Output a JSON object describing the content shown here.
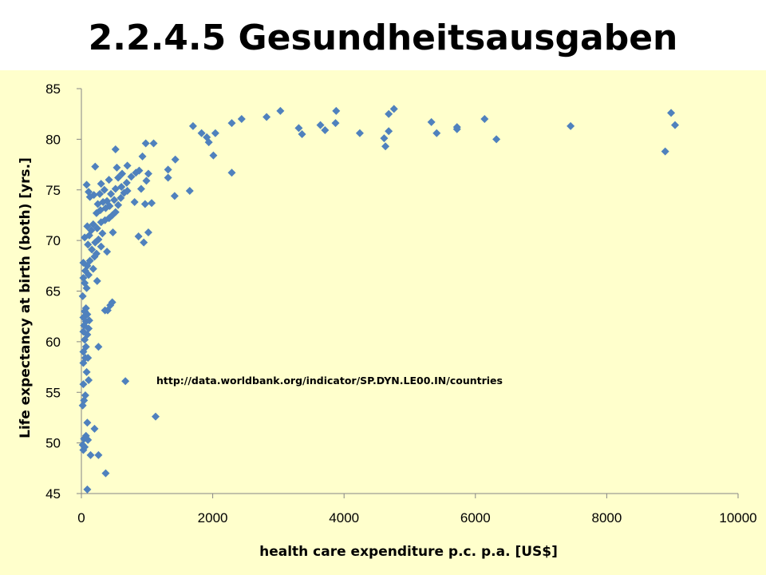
{
  "slide": {
    "title": "2.2.4.5 Gesundheitsausgaben"
  },
  "colors": {
    "panel_background": "#FFFFCC",
    "marker": "#4F81BD",
    "axis": "#868686"
  },
  "chart_data": {
    "type": "scatter",
    "title": "",
    "xlabel": "health care expenditure p.c. p.a. [US$]",
    "ylabel": "Life expectancy at birth (both) [yrs.]",
    "xlim": [
      0,
      10000
    ],
    "ylim": [
      45,
      85
    ],
    "xticks": [
      0,
      2000,
      4000,
      6000,
      8000,
      10000
    ],
    "yticks": [
      45,
      50,
      55,
      60,
      65,
      70,
      75,
      80,
      85
    ],
    "grid": false,
    "legend": "none",
    "marker": "diamond",
    "annotation": "http://data.worldbank.org/indicator/SP.DYN.LE00.IN/countries",
    "points": [
      [
        90,
        45.4
      ],
      [
        370,
        47.0
      ],
      [
        140,
        48.8
      ],
      [
        260,
        48.8
      ],
      [
        30,
        49.3
      ],
      [
        50,
        49.6
      ],
      [
        20,
        49.8
      ],
      [
        40,
        50.4
      ],
      [
        70,
        50.7
      ],
      [
        100,
        50.3
      ],
      [
        200,
        51.4
      ],
      [
        90,
        52.0
      ],
      [
        20,
        53.7
      ],
      [
        40,
        54.2
      ],
      [
        60,
        54.7
      ],
      [
        30,
        55.8
      ],
      [
        110,
        56.2
      ],
      [
        80,
        57.0
      ],
      [
        30,
        57.9
      ],
      [
        60,
        58.4
      ],
      [
        100,
        58.4
      ],
      [
        30,
        59.0
      ],
      [
        70,
        59.5
      ],
      [
        260,
        59.5
      ],
      [
        50,
        60.2
      ],
      [
        90,
        60.7
      ],
      [
        30,
        61.0
      ],
      [
        110,
        61.3
      ],
      [
        40,
        61.6
      ],
      [
        70,
        62.0
      ],
      [
        120,
        62.1
      ],
      [
        30,
        62.4
      ],
      [
        90,
        62.7
      ],
      [
        50,
        63.0
      ],
      [
        360,
        63.1
      ],
      [
        70,
        63.3
      ],
      [
        400,
        63.1
      ],
      [
        440,
        63.6
      ],
      [
        470,
        63.9
      ],
      [
        20,
        64.5
      ],
      [
        80,
        65.3
      ],
      [
        50,
        65.8
      ],
      [
        240,
        66.0
      ],
      [
        30,
        66.3
      ],
      [
        110,
        66.6
      ],
      [
        60,
        67.0
      ],
      [
        180,
        67.2
      ],
      [
        90,
        67.5
      ],
      [
        30,
        67.8
      ],
      [
        130,
        68.0
      ],
      [
        200,
        68.4
      ],
      [
        230,
        68.7
      ],
      [
        390,
        68.9
      ],
      [
        160,
        69.1
      ],
      [
        300,
        69.4
      ],
      [
        100,
        69.6
      ],
      [
        210,
        69.8
      ],
      [
        260,
        70.1
      ],
      [
        50,
        70.3
      ],
      [
        120,
        70.5
      ],
      [
        320,
        70.7
      ],
      [
        480,
        70.8
      ],
      [
        870,
        70.4
      ],
      [
        950,
        69.8
      ],
      [
        1020,
        70.8
      ],
      [
        150,
        71.0
      ],
      [
        240,
        71.2
      ],
      [
        90,
        71.4
      ],
      [
        180,
        71.6
      ],
      [
        300,
        71.8
      ],
      [
        360,
        72.0
      ],
      [
        420,
        72.2
      ],
      [
        470,
        72.5
      ],
      [
        230,
        72.7
      ],
      [
        520,
        72.8
      ],
      [
        290,
        73.0
      ],
      [
        370,
        73.2
      ],
      [
        430,
        73.4
      ],
      [
        560,
        73.5
      ],
      [
        250,
        73.6
      ],
      [
        330,
        73.8
      ],
      [
        390,
        73.9
      ],
      [
        810,
        73.8
      ],
      [
        970,
        73.6
      ],
      [
        1070,
        73.7
      ],
      [
        500,
        74.0
      ],
      [
        600,
        74.2
      ],
      [
        130,
        74.3
      ],
      [
        190,
        74.5
      ],
      [
        280,
        74.6
      ],
      [
        450,
        74.6
      ],
      [
        650,
        74.7
      ],
      [
        700,
        74.9
      ],
      [
        1420,
        74.4
      ],
      [
        1650,
        74.9
      ],
      [
        110,
        74.8
      ],
      [
        350,
        75.0
      ],
      [
        520,
        75.1
      ],
      [
        610,
        75.3
      ],
      [
        910,
        75.1
      ],
      [
        80,
        75.5
      ],
      [
        300,
        75.6
      ],
      [
        690,
        75.7
      ],
      [
        990,
        75.9
      ],
      [
        420,
        76.0
      ],
      [
        560,
        76.2
      ],
      [
        760,
        76.3
      ],
      [
        1320,
        76.2
      ],
      [
        620,
        76.6
      ],
      [
        830,
        76.7
      ],
      [
        880,
        76.9
      ],
      [
        1020,
        76.6
      ],
      [
        1320,
        77.0
      ],
      [
        2290,
        76.7
      ],
      [
        540,
        77.2
      ],
      [
        210,
        77.3
      ],
      [
        700,
        77.4
      ],
      [
        1430,
        78.0
      ],
      [
        930,
        78.3
      ],
      [
        2010,
        78.4
      ],
      [
        8890,
        78.8
      ],
      [
        520,
        79.0
      ],
      [
        980,
        79.6
      ],
      [
        1100,
        79.6
      ],
      [
        4630,
        79.3
      ],
      [
        1940,
        79.7
      ],
      [
        6320,
        80.0
      ],
      [
        1910,
        80.2
      ],
      [
        4610,
        80.1
      ],
      [
        1830,
        80.6
      ],
      [
        2040,
        80.6
      ],
      [
        4240,
        80.6
      ],
      [
        3360,
        80.5
      ],
      [
        5410,
        80.6
      ],
      [
        4680,
        80.8
      ],
      [
        3710,
        80.9
      ],
      [
        5720,
        81.0
      ],
      [
        1700,
        81.3
      ],
      [
        3310,
        81.1
      ],
      [
        5720,
        81.2
      ],
      [
        2290,
        81.6
      ],
      [
        3640,
        81.4
      ],
      [
        3870,
        81.6
      ],
      [
        5330,
        81.7
      ],
      [
        7450,
        81.3
      ],
      [
        9040,
        81.4
      ],
      [
        2440,
        82.0
      ],
      [
        2820,
        82.2
      ],
      [
        6140,
        82.0
      ],
      [
        4680,
        82.5
      ],
      [
        3030,
        82.8
      ],
      [
        3880,
        82.8
      ],
      [
        4760,
        83.0
      ],
      [
        8980,
        82.6
      ],
      [
        670,
        56.1
      ],
      [
        1130,
        52.6
      ]
    ]
  }
}
